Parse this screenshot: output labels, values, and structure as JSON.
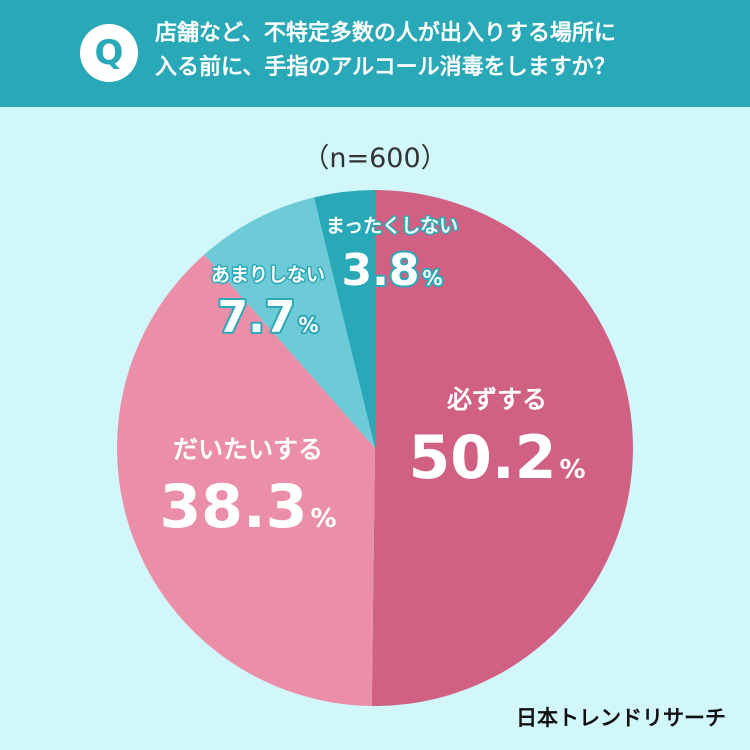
{
  "header": {
    "badge": "Q",
    "question_line1": "店舗など、不特定多数の人が出入りする場所に",
    "question_line2": "入る前に、手指のアルコール消毒をしますか？"
  },
  "sample_size": "（n=600）",
  "brand": "日本トレンドリサーチ",
  "colors": {
    "background": "#d2f7fb",
    "header": "#29a9b8",
    "always": "#d16183",
    "mostly": "#eb8fa9",
    "rarely": "#6ccbd6",
    "never": "#29a9b8"
  },
  "chart_data": {
    "type": "pie",
    "title": "",
    "slices": [
      {
        "label": "必ずする",
        "value": 50.2,
        "display": "50.2",
        "color": "#d16183"
      },
      {
        "label": "だいたいする",
        "value": 38.3,
        "display": "38.3",
        "color": "#eb8fa9"
      },
      {
        "label": "あまりしない",
        "value": 7.7,
        "display": "7.7",
        "color": "#6ccbd6"
      },
      {
        "label": "まったくしない",
        "value": 3.8,
        "display": "3.8",
        "color": "#29a9b8"
      }
    ],
    "unit": "%",
    "start": "12 o'clock",
    "direction": "clockwise"
  }
}
